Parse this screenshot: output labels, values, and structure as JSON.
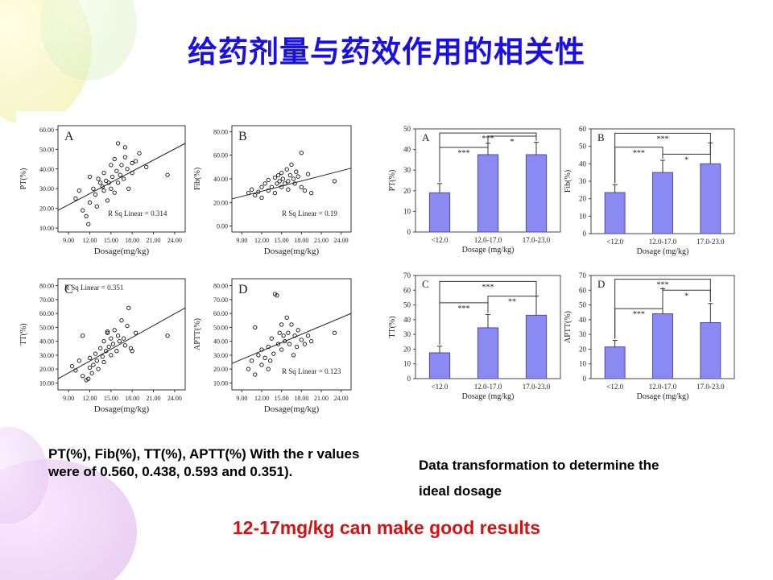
{
  "title": "给药剂量与药效作用的相关性",
  "caption_left": "PT(%), Fib(%), TT(%), APTT(%) With the r values were of 0.560, 0.438, 0.593 and 0.351).",
  "caption_right_line1": "Data transformation to determine the",
  "caption_right_line2": "ideal dosage",
  "conclusion": "12-17mg/kg can make good results",
  "colors": {
    "title": "#1a10e6",
    "conclusion": "#d31313",
    "bar": "#8a8af2",
    "bar_edge": "#4a4ab8",
    "line": "#222222"
  },
  "chart_data": [
    {
      "type": "scatter",
      "panel": "A",
      "ylabel": "PT(%)",
      "xlabel": "Dosage(mg/kg)",
      "annotation": "R Sq Linear = 0.314",
      "xlim": [
        7.5,
        25.5
      ],
      "ylim": [
        8,
        62
      ],
      "xticks": [
        "9.00",
        "12.00",
        "15.00",
        "18.00",
        "21.00",
        "24.00"
      ],
      "yticks": [
        "10.00",
        "20.00",
        "30.00",
        "40.00",
        "50.00",
        "60.00"
      ],
      "fit": [
        [
          7.5,
          19
        ],
        [
          25.5,
          53
        ]
      ],
      "points": [
        [
          10,
          25
        ],
        [
          10.5,
          29
        ],
        [
          11,
          19
        ],
        [
          11.5,
          16
        ],
        [
          11.8,
          12
        ],
        [
          12,
          23
        ],
        [
          12,
          36
        ],
        [
          12.5,
          30
        ],
        [
          12.8,
          27
        ],
        [
          13,
          21
        ],
        [
          13.2,
          35
        ],
        [
          13.5,
          33
        ],
        [
          13.8,
          31
        ],
        [
          14,
          29
        ],
        [
          14,
          38
        ],
        [
          14.3,
          34
        ],
        [
          14.5,
          24
        ],
        [
          14.7,
          33
        ],
        [
          15,
          42
        ],
        [
          15,
          30
        ],
        [
          15.2,
          36
        ],
        [
          15.5,
          45
        ],
        [
          15.5,
          28
        ],
        [
          15.8,
          39
        ],
        [
          16,
          33
        ],
        [
          16,
          53
        ],
        [
          16.3,
          37
        ],
        [
          16.5,
          42
        ],
        [
          16.8,
          35
        ],
        [
          17,
          46
        ],
        [
          17,
          51
        ],
        [
          17.3,
          40
        ],
        [
          17.5,
          30
        ],
        [
          18,
          43
        ],
        [
          18,
          38
        ],
        [
          18.5,
          44
        ],
        [
          19,
          48
        ],
        [
          20,
          41
        ],
        [
          23,
          37
        ]
      ]
    },
    {
      "type": "scatter",
      "panel": "B",
      "ylabel": "Fib(%)",
      "xlabel": "Dosage(mg/kg)",
      "annotation": "R Sq Linear = 0.19",
      "xlim": [
        7.5,
        25.5
      ],
      "ylim": [
        -5,
        85
      ],
      "xticks": [
        "9.00",
        "12.00",
        "15.00",
        "18.00",
        "21.00",
        "24.00"
      ],
      "yticks": [
        "0.00",
        "20.00",
        "40.00",
        "60.00",
        "80.00"
      ],
      "fit": [
        [
          7.5,
          23
        ],
        [
          25.5,
          49
        ]
      ],
      "points": [
        [
          10,
          28
        ],
        [
          10.5,
          31
        ],
        [
          11,
          26
        ],
        [
          11.5,
          29
        ],
        [
          12,
          33
        ],
        [
          12,
          24
        ],
        [
          12.5,
          36
        ],
        [
          13,
          30
        ],
        [
          13,
          39
        ],
        [
          13.5,
          33
        ],
        [
          14,
          41
        ],
        [
          14,
          28
        ],
        [
          14.3,
          36
        ],
        [
          14.5,
          43
        ],
        [
          14.7,
          38
        ],
        [
          15,
          33
        ],
        [
          15,
          45
        ],
        [
          15.2,
          40
        ],
        [
          15.5,
          36
        ],
        [
          15.8,
          48
        ],
        [
          16,
          38
        ],
        [
          16,
          31
        ],
        [
          16.3,
          43
        ],
        [
          16.5,
          52
        ],
        [
          16.8,
          40
        ],
        [
          17,
          36
        ],
        [
          17.2,
          46
        ],
        [
          17.5,
          42
        ],
        [
          18,
          62
        ],
        [
          18,
          33
        ],
        [
          18.5,
          30
        ],
        [
          19,
          44
        ],
        [
          19.5,
          28
        ],
        [
          23,
          38
        ]
      ]
    },
    {
      "type": "scatter",
      "panel": "C",
      "ylabel": "TT(%)",
      "xlabel": "Dosage(mg/kg)",
      "annotation": "R Sq Linear = 0.351",
      "xlim": [
        7.5,
        25.5
      ],
      "ylim": [
        5,
        85
      ],
      "xticks": [
        "9.00",
        "12.00",
        "15.00",
        "18.00",
        "21.00",
        "24.00"
      ],
      "yticks": [
        "10.00",
        "20.00",
        "30.00",
        "40.00",
        "50.00",
        "60.00",
        "70.00",
        "80.00"
      ],
      "fit": [
        [
          7.5,
          13
        ],
        [
          25.5,
          64
        ]
      ],
      "points": [
        [
          9.5,
          22
        ],
        [
          10,
          19
        ],
        [
          10.5,
          26
        ],
        [
          11,
          15
        ],
        [
          11.5,
          12
        ],
        [
          11.8,
          13
        ],
        [
          12,
          21
        ],
        [
          12,
          28
        ],
        [
          12.3,
          17
        ],
        [
          12.5,
          23
        ],
        [
          12.8,
          31
        ],
        [
          13,
          26
        ],
        [
          13.2,
          20
        ],
        [
          13.5,
          35
        ],
        [
          13.8,
          29
        ],
        [
          14,
          40
        ],
        [
          14,
          25
        ],
        [
          14.3,
          33
        ],
        [
          14.5,
          46
        ],
        [
          14.7,
          36
        ],
        [
          15,
          30
        ],
        [
          15,
          42
        ],
        [
          15.3,
          38
        ],
        [
          15.5,
          48
        ],
        [
          15.8,
          33
        ],
        [
          16,
          44
        ],
        [
          16.2,
          40
        ],
        [
          16.5,
          55
        ],
        [
          16.8,
          42
        ],
        [
          17,
          37
        ],
        [
          17.3,
          51
        ],
        [
          17.5,
          64
        ],
        [
          17.8,
          35
        ],
        [
          18,
          33
        ],
        [
          18.5,
          46
        ],
        [
          11,
          44
        ],
        [
          14.5,
          47
        ],
        [
          23,
          44
        ]
      ]
    },
    {
      "type": "scatter",
      "panel": "D",
      "ylabel": "APTT(%)",
      "xlabel": "Dosage(mg/kg)",
      "annotation": "R Sq Linear = 0.123",
      "xlim": [
        7.5,
        25.5
      ],
      "ylim": [
        5,
        85
      ],
      "xticks": [
        "9.00",
        "12.00",
        "15.00",
        "18.00",
        "21.00",
        "24.00"
      ],
      "yticks": [
        "10.00",
        "20.00",
        "30.00",
        "40.00",
        "50.00",
        "60.00",
        "70.00",
        "80.00"
      ],
      "fit": [
        [
          7.5,
          24
        ],
        [
          25.5,
          60
        ]
      ],
      "points": [
        [
          10,
          20
        ],
        [
          10.5,
          26
        ],
        [
          11,
          16
        ],
        [
          11.5,
          30
        ],
        [
          12,
          23
        ],
        [
          12,
          34
        ],
        [
          12.5,
          28
        ],
        [
          13,
          20
        ],
        [
          13,
          36
        ],
        [
          13.3,
          26
        ],
        [
          13.5,
          42
        ],
        [
          13.8,
          31
        ],
        [
          14,
          74
        ],
        [
          14.3,
          73
        ],
        [
          14.5,
          38
        ],
        [
          14.7,
          46
        ],
        [
          15,
          34
        ],
        [
          15,
          52
        ],
        [
          15.3,
          44
        ],
        [
          15.5,
          40
        ],
        [
          15.8,
          57
        ],
        [
          16,
          46
        ],
        [
          16.2,
          38
        ],
        [
          16.5,
          52
        ],
        [
          16.8,
          30
        ],
        [
          17,
          44
        ],
        [
          17.3,
          36
        ],
        [
          17.5,
          48
        ],
        [
          18,
          41
        ],
        [
          18.5,
          38
        ],
        [
          19,
          44
        ],
        [
          19.5,
          40
        ],
        [
          11,
          50
        ],
        [
          23,
          46
        ]
      ]
    },
    {
      "type": "bar",
      "panel": "A",
      "ylabel": "PT(%)",
      "xlabel": "Dosage (mg/kg)",
      "categories": [
        "<12.0",
        "12.0-17.0",
        "17.0-23.0"
      ],
      "values": [
        19,
        37.5,
        37.5
      ],
      "errors": [
        4.5,
        5.5,
        6
      ],
      "ylim": [
        0,
        50
      ],
      "yticks": [
        "0",
        "10",
        "20",
        "30",
        "40",
        "50"
      ],
      "sig": [
        {
          "from": 0,
          "to": 2,
          "label": "***",
          "y": 48
        },
        {
          "from": 0,
          "to": 1,
          "label": "***",
          "y": 41
        },
        {
          "from": 1,
          "to": 2,
          "label": "*",
          "y": 46.5
        }
      ]
    },
    {
      "type": "bar",
      "panel": "B",
      "ylabel": "Fib(%)",
      "xlabel": "Dosage (mg/kg)",
      "categories": [
        "<12.0",
        "12.0-17.0",
        "17.0-23.0"
      ],
      "values": [
        23.5,
        35,
        40
      ],
      "errors": [
        4.5,
        7,
        12
      ],
      "ylim": [
        0,
        60
      ],
      "yticks": [
        "0",
        "10",
        "20",
        "30",
        "40",
        "50",
        "60"
      ],
      "sig": [
        {
          "from": 0,
          "to": 2,
          "label": "***",
          "y": 57.5
        },
        {
          "from": 0,
          "to": 1,
          "label": "***",
          "y": 49.5
        },
        {
          "from": 1,
          "to": 2,
          "label": "*",
          "y": 45.5
        }
      ]
    },
    {
      "type": "bar",
      "panel": "C",
      "ylabel": "TT(%)",
      "xlabel": "Dosage (mg/kg)",
      "categories": [
        "<12.0",
        "12.0-17.0",
        "17.0-23.0"
      ],
      "values": [
        17.5,
        34.5,
        43
      ],
      "errors": [
        4.5,
        9,
        13
      ],
      "ylim": [
        0,
        70
      ],
      "yticks": [
        "0",
        "10",
        "20",
        "30",
        "40",
        "50",
        "60",
        "70"
      ],
      "sig": [
        {
          "from": 0,
          "to": 2,
          "label": "***",
          "y": 66
        },
        {
          "from": 0,
          "to": 1,
          "label": "***",
          "y": 51.5
        },
        {
          "from": 1,
          "to": 2,
          "label": "**",
          "y": 56
        }
      ]
    },
    {
      "type": "bar",
      "panel": "D",
      "ylabel": "APTT(%)",
      "xlabel": "Dosage (mg/kg)",
      "categories": [
        "<12.0",
        "12.0-17.0",
        "17.0-23.0"
      ],
      "values": [
        21.5,
        44,
        38
      ],
      "errors": [
        4.5,
        17,
        13
      ],
      "ylim": [
        0,
        70
      ],
      "yticks": [
        "0",
        "10",
        "20",
        "30",
        "40",
        "50",
        "60",
        "70"
      ],
      "sig": [
        {
          "from": 0,
          "to": 2,
          "label": "***",
          "y": 67.5
        },
        {
          "from": 0,
          "to": 1,
          "label": "***",
          "y": 47.5
        },
        {
          "from": 1,
          "to": 2,
          "label": "*",
          "y": 60
        }
      ]
    }
  ]
}
